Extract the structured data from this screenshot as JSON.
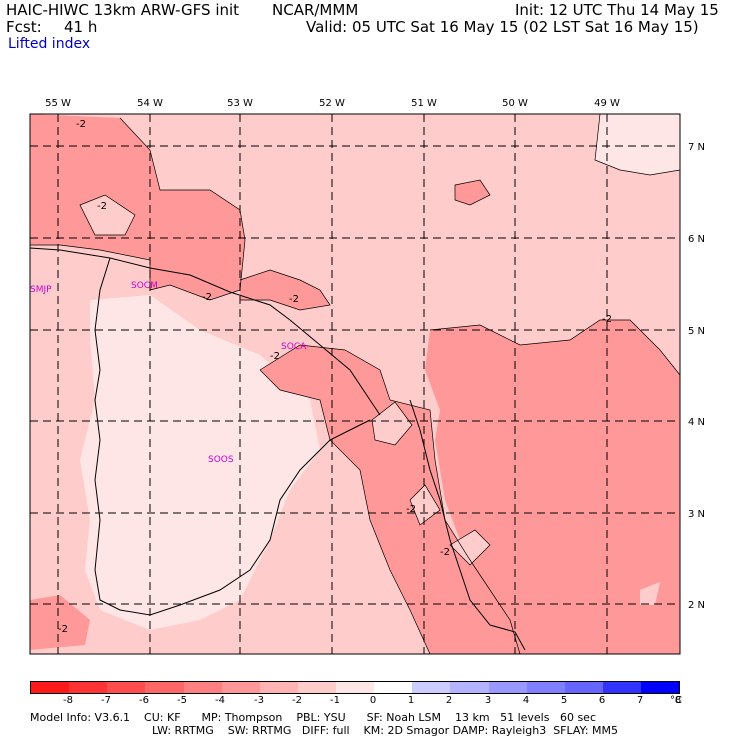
{
  "header": {
    "model_title": "HAIC-HIWC 13km ARW-GFS init",
    "org": "NCAR/MMM",
    "init": "Init: 12 UTC Thu 14 May 15",
    "fcst_label": "Fcst:",
    "fcst_value": "41 h",
    "valid": "Valid: 05 UTC Sat 16 May 15 (02 LST Sat 16 May 15)",
    "field": "Lifted index",
    "field_color": "#0000cc"
  },
  "map": {
    "lon_labels": [
      "55 W",
      "54 W",
      "53 W",
      "52 W",
      "51 W",
      "50 W",
      "49 W"
    ],
    "lat_labels": [
      "7 N",
      "6 N",
      "5 N",
      "4 N",
      "3 N",
      "2 N"
    ],
    "stations": [
      "SMJP",
      "SOCM",
      "SOCA",
      "SOOS"
    ],
    "station_color": "#cc00cc",
    "contour_labels": [
      "-2",
      "-2",
      "-2",
      "-2",
      "-2",
      "-2",
      "-2",
      "-2",
      "-2"
    ]
  },
  "colorbar": {
    "levels": [
      "-8",
      "-7",
      "-6",
      "-5",
      "-4",
      "-3",
      "-2",
      "-1",
      "0",
      "1",
      "2",
      "3",
      "4",
      "5",
      "6",
      "7",
      "8",
      "°C"
    ],
    "colors": [
      "#ff1a1a",
      "#ff3333",
      "#ff4d4d",
      "#ff6666",
      "#ff8080",
      "#ff9999",
      "#ffb3b3",
      "#ffcccc",
      "#ffe6e6",
      "#ffffff",
      "#ccccff",
      "#b3b3ff",
      "#9999ff",
      "#8080ff",
      "#6666ff",
      "#3333ff",
      "#0000ff"
    ]
  },
  "footer": {
    "line1": "Model Info: V3.6.1    CU: KF      MP: Thompson    PBL: YSU      SF: Noah LSM    13 km   51 levels   60 sec",
    "line2": "LW: RRTMG    SW: RRTMG   DIFF: full    KM: 2D Smagor DAMP: Rayleigh3  SFLAY: MM5"
  }
}
